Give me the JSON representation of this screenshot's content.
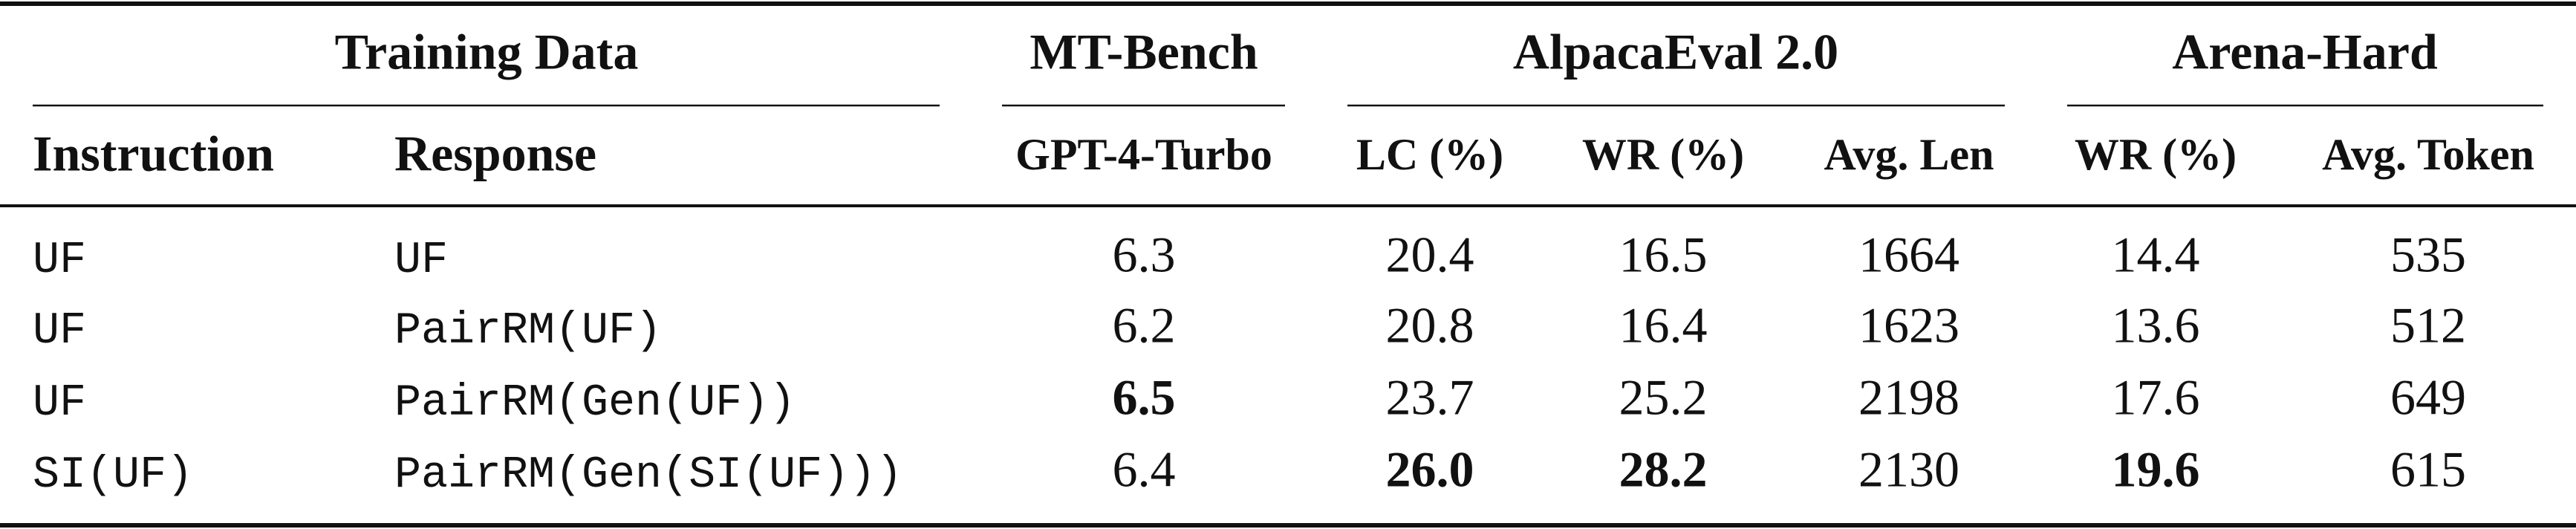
{
  "table": {
    "group_headers": [
      "Training Data",
      "MT-Bench",
      "AlpacaEval 2.0",
      "Arena-Hard"
    ],
    "column_headers": [
      "Instruction",
      "Response",
      "GPT-4-Turbo",
      "LC (%)",
      "WR (%)",
      "Avg. Len",
      "WR (%)",
      "Avg. Token"
    ],
    "rows": [
      [
        "UF",
        "UF",
        "6.3",
        "20.4",
        "16.5",
        "1664",
        "14.4",
        "535"
      ],
      [
        "UF",
        "PairRM(UF)",
        "6.2",
        "20.8",
        "16.4",
        "1623",
        "13.6",
        "512"
      ],
      [
        "UF",
        "PairRM(Gen(UF))",
        "6.5",
        "23.7",
        "25.2",
        "2198",
        "17.6",
        "649"
      ],
      [
        "SI(UF)",
        "PairRM(Gen(SI(UF)))",
        "6.4",
        "26.0",
        "28.2",
        "2130",
        "19.6",
        "615"
      ]
    ],
    "bold_cells": [
      [
        2,
        2
      ],
      [
        3,
        3
      ],
      [
        3,
        4
      ],
      [
        3,
        6
      ]
    ]
  }
}
